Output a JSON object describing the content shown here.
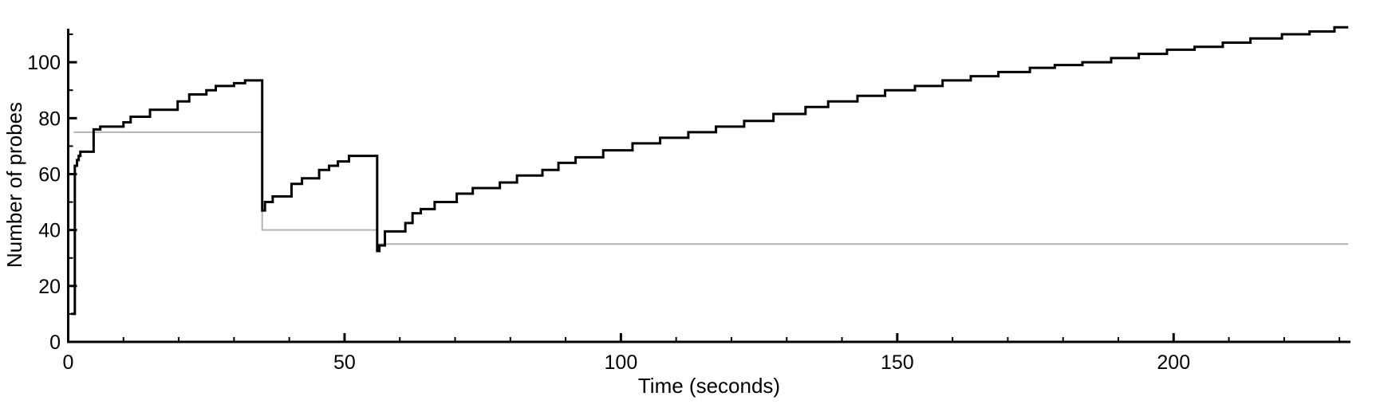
{
  "figure": {
    "background": "#ffffff",
    "title": ""
  },
  "chart_data": {
    "type": "line",
    "subtype": "step-post-staircase",
    "title": "",
    "xlabel": "Time (seconds)",
    "ylabel": "Number of probes",
    "xlim": [
      0,
      232
    ],
    "ylim": [
      0,
      112
    ],
    "grid": false,
    "legend": "none",
    "axis_color": "#000000",
    "background": "#ffffff",
    "x_major_ticks": {
      "values": [
        0,
        50,
        100,
        150,
        200
      ],
      "labels": [
        "0",
        "50",
        "100",
        "150",
        "200"
      ]
    },
    "x_minor_ticks": [
      10,
      20,
      30,
      40,
      60,
      70,
      80,
      90,
      110,
      120,
      130,
      140,
      160,
      170,
      180,
      190,
      210,
      220,
      230
    ],
    "y_major_ticks": {
      "values": [
        0,
        20,
        40,
        60,
        80,
        100
      ],
      "labels": [
        "0",
        "20",
        "40",
        "60",
        "80",
        "100"
      ]
    },
    "y_minor_ticks": [
      10,
      30,
      50,
      70,
      90,
      110
    ],
    "series": [
      {
        "name": "timeout-reference-level",
        "style": "polyline",
        "color": "#b3b3b3",
        "stroke_width": 2,
        "points": [
          [
            1,
            75
          ],
          [
            35.1,
            75
          ],
          [
            35.1,
            40
          ],
          [
            55.9,
            40
          ],
          [
            55.9,
            35
          ],
          [
            231.6,
            35
          ]
        ]
      },
      {
        "name": "number-of-probes",
        "style": "step-post",
        "color": "#000000",
        "stroke_width": 3,
        "points": [
          [
            0.5,
            10
          ],
          [
            1.2,
            63
          ],
          [
            1.6,
            65
          ],
          [
            1.9,
            66.5
          ],
          [
            2.2,
            68
          ],
          [
            4.6,
            76
          ],
          [
            5.8,
            77
          ],
          [
            10,
            78.5
          ],
          [
            11.3,
            80.5
          ],
          [
            14.8,
            83
          ],
          [
            19.8,
            86
          ],
          [
            21.9,
            88.5
          ],
          [
            25,
            90
          ],
          [
            26.7,
            91.5
          ],
          [
            30,
            92.5
          ],
          [
            32,
            93.5
          ],
          [
            35.1,
            47
          ],
          [
            35.6,
            50
          ],
          [
            37,
            52
          ],
          [
            40.4,
            56.5
          ],
          [
            42.3,
            58.5
          ],
          [
            45.4,
            61.5
          ],
          [
            47.2,
            63
          ],
          [
            48.8,
            64.5
          ],
          [
            50.8,
            66.5
          ],
          [
            55.9,
            32.5
          ],
          [
            56.3,
            34.5
          ],
          [
            57.3,
            39.5
          ],
          [
            61,
            42.5
          ],
          [
            62.3,
            46
          ],
          [
            63.8,
            47.5
          ],
          [
            66.3,
            50
          ],
          [
            70.3,
            53
          ],
          [
            73.2,
            55
          ],
          [
            78.1,
            57
          ],
          [
            81.2,
            59.5
          ],
          [
            85.8,
            61.5
          ],
          [
            88.7,
            64
          ],
          [
            91.8,
            66
          ],
          [
            96.8,
            68.5
          ],
          [
            102.1,
            71
          ],
          [
            107.1,
            73
          ],
          [
            112.2,
            75
          ],
          [
            117.2,
            77
          ],
          [
            122.3,
            79
          ],
          [
            127.6,
            81.5
          ],
          [
            133.4,
            84
          ],
          [
            137.5,
            86
          ],
          [
            142.8,
            88
          ],
          [
            147.8,
            90
          ],
          [
            153.2,
            91.5
          ],
          [
            158.2,
            93.5
          ],
          [
            163.3,
            95
          ],
          [
            168.3,
            96.5
          ],
          [
            174,
            98
          ],
          [
            178.5,
            99
          ],
          [
            183.5,
            100
          ],
          [
            188.7,
            101.5
          ],
          [
            193.7,
            103
          ],
          [
            198.8,
            104.5
          ],
          [
            203.8,
            105.5
          ],
          [
            208.9,
            107
          ],
          [
            213.9,
            108.5
          ],
          [
            219.6,
            110
          ],
          [
            224.6,
            111
          ],
          [
            229.1,
            112.5
          ],
          [
            231.6,
            112.5
          ]
        ]
      }
    ]
  }
}
